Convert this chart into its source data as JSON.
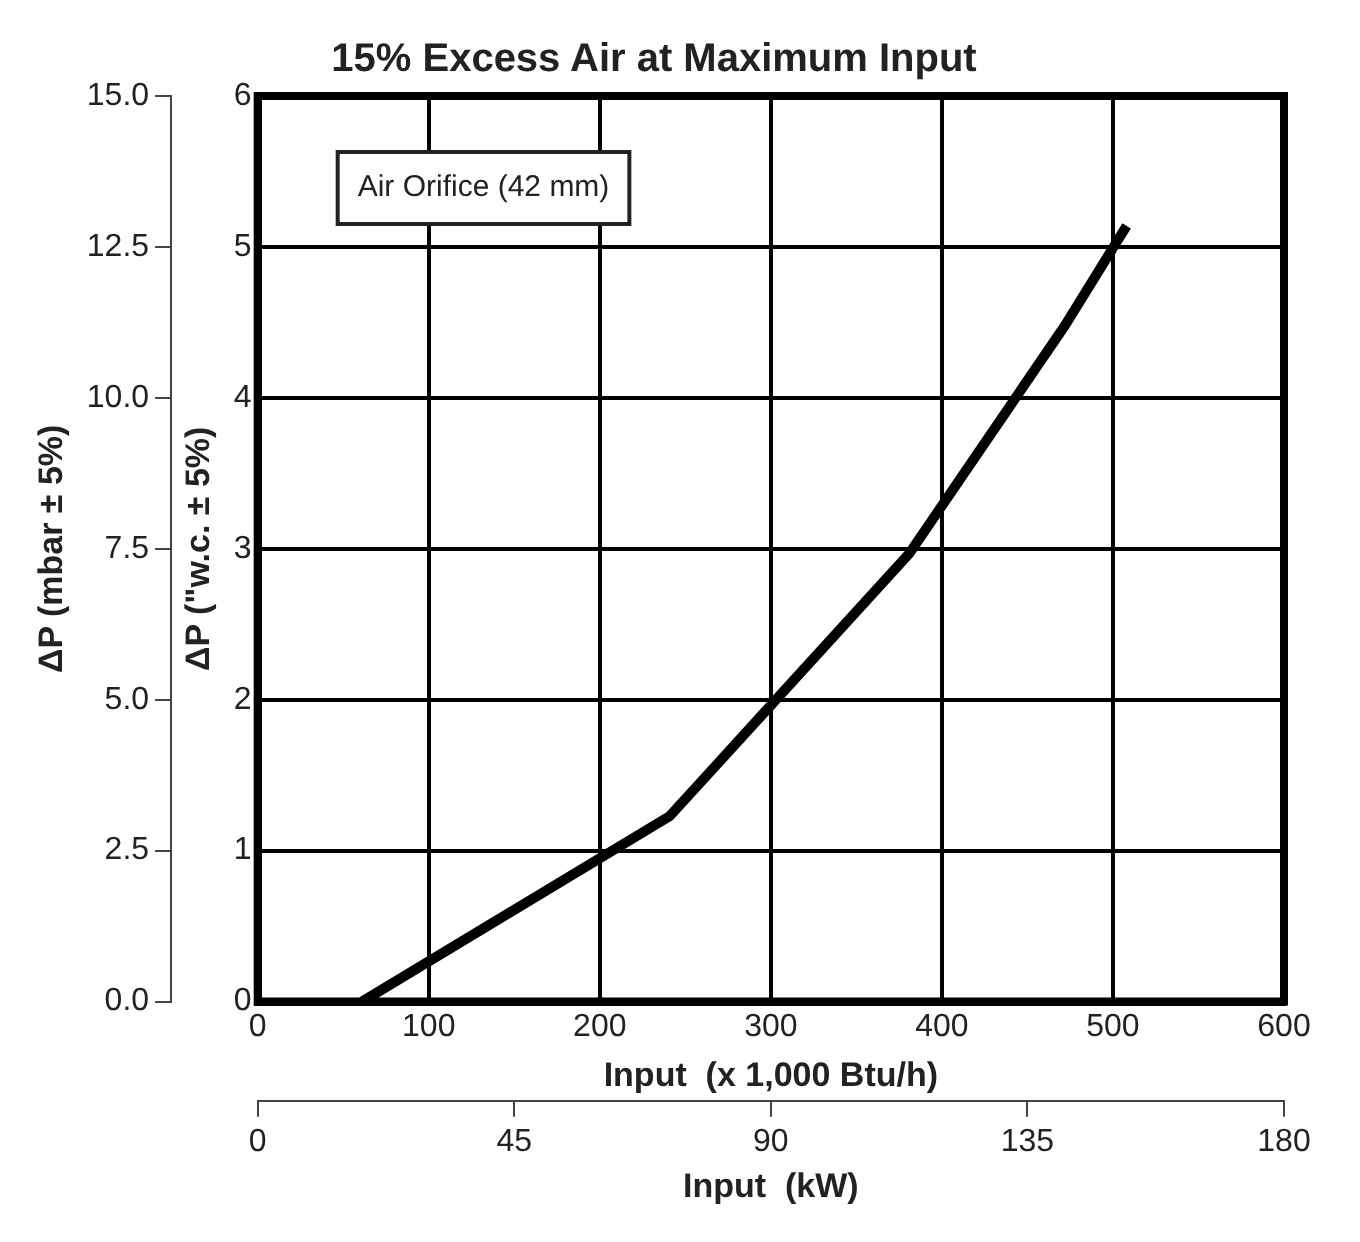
{
  "chart_data": {
    "type": "line",
    "title": "15% Excess Air at Maximum Input",
    "xlabel": "Input  (x 1,000 Btu/h)",
    "ylabel": "ΔP (\"w.c. ± 5%)",
    "y2label": "ΔP (mbar ± 5%)",
    "x2label": "Input  (kW)",
    "annotations": [
      "Air Orifice (42 mm)"
    ],
    "series": [
      {
        "color": "#000000",
        "x": [
          61,
          241,
          381,
          472,
          508
        ],
        "values": [
          0,
          1.23,
          2.97,
          4.48,
          5.14
        ]
      }
    ],
    "xlim": [
      0,
      600
    ],
    "xticks": [
      0,
      100,
      200,
      300,
      400,
      500,
      600
    ],
    "ylim": [
      0,
      6
    ],
    "yticks": [
      0,
      1,
      2,
      3,
      4,
      5,
      6
    ],
    "y2lim": [
      0,
      15
    ],
    "y2ticks": [
      {
        "value": 0,
        "label": "0.0"
      },
      {
        "value": 2.5,
        "label": "2.5"
      },
      {
        "value": 5,
        "label": "5.0"
      },
      {
        "value": 7.5,
        "label": "7.5"
      },
      {
        "value": 10,
        "label": "10.0"
      },
      {
        "value": 12.5,
        "label": "12.5"
      },
      {
        "value": 15,
        "label": "15.0"
      }
    ],
    "x2lim": [
      0,
      180
    ],
    "x2ticks": [
      0,
      45,
      90,
      135,
      180
    ],
    "grid": true,
    "legend": false,
    "marker": "none",
    "line_style": "solid"
  }
}
